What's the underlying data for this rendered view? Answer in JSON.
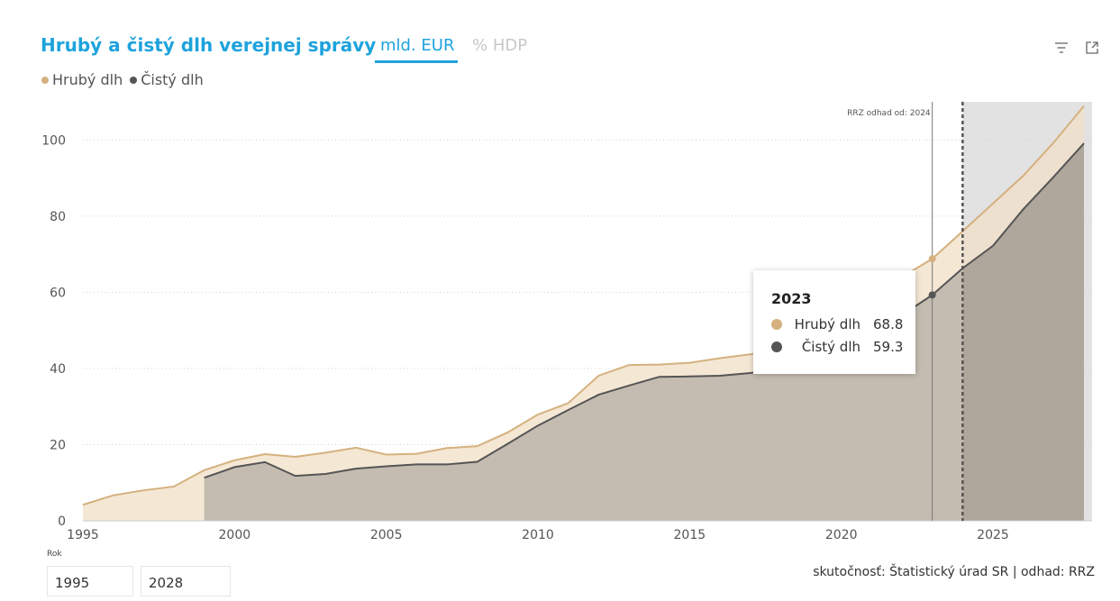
{
  "header": {
    "title": "Hrubý a čistý dlh verejnej správy",
    "tabs": [
      {
        "label": "mld. EUR",
        "active": true
      },
      {
        "label": "% HDP",
        "active": false
      }
    ],
    "icons": [
      "filter-icon",
      "expand-icon"
    ]
  },
  "legend": [
    {
      "label": "Hrubý dlh",
      "color": "#d4b17e"
    },
    {
      "label": "Čistý dlh",
      "color": "#555555"
    }
  ],
  "annotation": {
    "text": "RRZ odhad od: 2024"
  },
  "tooltip": {
    "year": "2023",
    "rows": [
      {
        "label": "Hrubý dlh",
        "value": "68.8",
        "color": "#d4b17e"
      },
      {
        "label": "Čistý dlh",
        "value": "59.3",
        "color": "#555555"
      }
    ]
  },
  "filter": {
    "label": "Rok",
    "from": "1995",
    "to": "2028"
  },
  "source": "skutočnosť: Štatistický úrad SR | odhad: RRZ",
  "chart_data": {
    "type": "area",
    "x": [
      1995,
      1996,
      1997,
      1998,
      1999,
      2000,
      2001,
      2002,
      2003,
      2004,
      2005,
      2006,
      2007,
      2008,
      2009,
      2010,
      2011,
      2012,
      2013,
      2014,
      2015,
      2016,
      2017,
      2018,
      2019,
      2020,
      2021,
      2022,
      2023,
      2024,
      2025,
      2026,
      2027,
      2028
    ],
    "series": [
      {
        "name": "Hrubý dlh",
        "color": "#d4b17e",
        "values": [
          4.2,
          6.7,
          8.0,
          9.0,
          13.3,
          15.9,
          17.5,
          16.8,
          17.9,
          19.2,
          17.4,
          17.6,
          19.1,
          19.6,
          23.2,
          27.9,
          30.9,
          38.1,
          40.9,
          41.0,
          41.5,
          42.7,
          43.7,
          45.2,
          46.7,
          55.0,
          59.5,
          64.0,
          68.8,
          76.0,
          83.3,
          90.6,
          99.3,
          108.9
        ]
      },
      {
        "name": "Čistý dlh",
        "color": "#555555",
        "values": [
          null,
          null,
          null,
          null,
          11.3,
          14.1,
          15.4,
          11.8,
          12.3,
          13.7,
          14.3,
          14.8,
          14.8,
          15.5,
          20.2,
          25.0,
          29.1,
          33.1,
          35.5,
          37.8,
          37.9,
          38.1,
          38.8,
          40.0,
          41.0,
          47.5,
          51.5,
          54.0,
          59.3,
          66.3,
          72.2,
          81.8,
          90.3,
          99.1
        ]
      }
    ],
    "xticks": [
      1995,
      2000,
      2005,
      2010,
      2015,
      2020,
      2025
    ],
    "yticks": [
      0,
      20,
      40,
      60,
      80,
      100
    ],
    "xlim": [
      1995,
      2028
    ],
    "ylim": [
      0,
      110
    ],
    "forecast_from": 2024,
    "highlight_year": 2023,
    "grid": "horizontal-dotted",
    "legend_position": "top-left"
  }
}
